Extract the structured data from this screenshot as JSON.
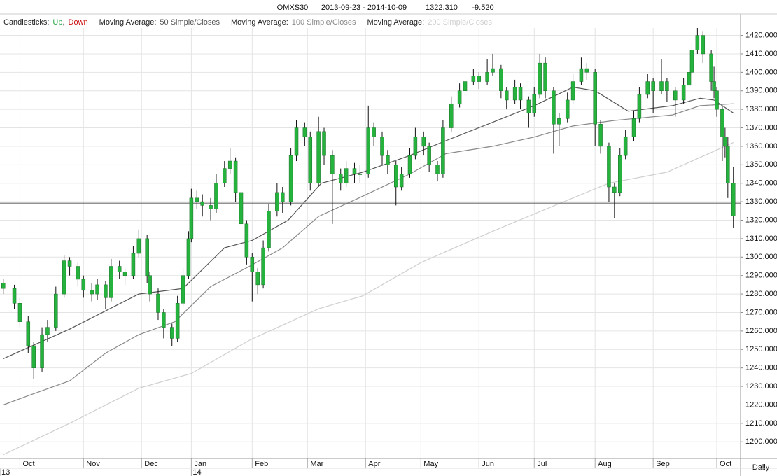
{
  "chart_data": {
    "type": "candlestick",
    "symbol": "OMXS30",
    "date_range": "2013-09-23 - 2014-10-09",
    "last": "1322.310",
    "change": "-9.520",
    "legend": {
      "candles_label": "Candlesticks:",
      "up_label": "Up",
      "separator": ",",
      "down_label": "Down",
      "up_color": "#2aa84a",
      "down_color": "#cc1111",
      "ma_label": "Moving Average:"
    },
    "period": "Daily",
    "candle_color": "#25b33d",
    "xlim": [
      -1.2,
      266.6
    ],
    "ylim": [
      1191,
      1424
    ],
    "yticks": [
      {
        "value": 1200,
        "label": "1200.000"
      },
      {
        "value": 1210,
        "label": "1210.000"
      },
      {
        "value": 1220,
        "label": "1220.000"
      },
      {
        "value": 1230,
        "label": "1230.000"
      },
      {
        "value": 1240,
        "label": "1240.000"
      },
      {
        "value": 1250,
        "label": "1250.000"
      },
      {
        "value": 1260,
        "label": "1260.000"
      },
      {
        "value": 1270,
        "label": "1270.000"
      },
      {
        "value": 1280,
        "label": "1280.000"
      },
      {
        "value": 1290,
        "label": "1290.000"
      },
      {
        "value": 1300,
        "label": "1300.000"
      },
      {
        "value": 1310,
        "label": "1310.000"
      },
      {
        "value": 1320,
        "label": "1320.000"
      },
      {
        "value": 1330,
        "label": "1330.000"
      },
      {
        "value": 1340,
        "label": "1340.000"
      },
      {
        "value": 1350,
        "label": "1350.000"
      },
      {
        "value": 1360,
        "label": "1360.000"
      },
      {
        "value": 1370,
        "label": "1370.000"
      },
      {
        "value": 1380,
        "label": "1380.000"
      },
      {
        "value": 1390,
        "label": "1390.000"
      },
      {
        "value": 1400,
        "label": "1400.000"
      },
      {
        "value": 1410,
        "label": "1410.000"
      },
      {
        "value": 1420,
        "label": "1420.000"
      }
    ],
    "xticks": [
      {
        "value": 6,
        "label": "Oct"
      },
      {
        "value": 29,
        "label": "Nov"
      },
      {
        "value": 50,
        "label": "Dec"
      },
      {
        "value": 68,
        "label": "Jan"
      },
      {
        "value": 90,
        "label": "Feb"
      },
      {
        "value": 110,
        "label": "Mar"
      },
      {
        "value": 131,
        "label": "Apr"
      },
      {
        "value": 151,
        "label": "May"
      },
      {
        "value": 172,
        "label": "Jun"
      },
      {
        "value": 192,
        "label": "Jul"
      },
      {
        "value": 214,
        "label": "Aug"
      },
      {
        "value": 235,
        "label": "Sep"
      },
      {
        "value": 258,
        "label": "Oct"
      }
    ],
    "year_ticks": [
      {
        "value": -1.2,
        "label": "13"
      },
      {
        "value": 68,
        "label": "14"
      }
    ],
    "grid": true,
    "hline": {
      "value": 1329,
      "color": "#777"
    },
    "candles": [
      {
        "x": 0,
        "open": 1286,
        "high": 1288,
        "low": 1280,
        "close": 1283
      },
      {
        "x": 4,
        "open": 1283,
        "high": 1285,
        "low": 1272,
        "close": 1275
      },
      {
        "x": 6,
        "open": 1275,
        "high": 1278,
        "low": 1262,
        "close": 1265
      },
      {
        "x": 9,
        "open": 1265,
        "high": 1268,
        "low": 1248,
        "close": 1252
      },
      {
        "x": 11,
        "open": 1252,
        "high": 1254,
        "low": 1234,
        "close": 1240
      },
      {
        "x": 14,
        "open": 1240,
        "high": 1262,
        "low": 1238,
        "close": 1258
      },
      {
        "x": 16,
        "open": 1258,
        "high": 1266,
        "low": 1254,
        "close": 1262
      },
      {
        "x": 19,
        "open": 1262,
        "high": 1284,
        "low": 1260,
        "close": 1280
      },
      {
        "x": 22,
        "open": 1280,
        "high": 1301,
        "low": 1278,
        "close": 1298
      },
      {
        "x": 24,
        "open": 1298,
        "high": 1300,
        "low": 1290,
        "close": 1295
      },
      {
        "x": 27,
        "open": 1295,
        "high": 1297,
        "low": 1284,
        "close": 1288
      },
      {
        "x": 29,
        "open": 1288,
        "high": 1290,
        "low": 1278,
        "close": 1282
      },
      {
        "x": 32,
        "open": 1282,
        "high": 1286,
        "low": 1276,
        "close": 1280
      },
      {
        "x": 34,
        "open": 1280,
        "high": 1288,
        "low": 1277,
        "close": 1285
      },
      {
        "x": 37,
        "open": 1285,
        "high": 1287,
        "low": 1272,
        "close": 1278
      },
      {
        "x": 39,
        "open": 1278,
        "high": 1299,
        "low": 1276,
        "close": 1295
      },
      {
        "x": 42,
        "open": 1295,
        "high": 1298,
        "low": 1288,
        "close": 1292
      },
      {
        "x": 44,
        "open": 1292,
        "high": 1294,
        "low": 1285,
        "close": 1290
      },
      {
        "x": 47,
        "open": 1290,
        "high": 1306,
        "low": 1288,
        "close": 1302
      },
      {
        "x": 49,
        "open": 1302,
        "high": 1315,
        "low": 1300,
        "close": 1310
      },
      {
        "x": 52,
        "open": 1310,
        "high": 1312,
        "low": 1286,
        "close": 1290
      },
      {
        "x": 53,
        "open": 1290,
        "high": 1292,
        "low": 1276,
        "close": 1280
      },
      {
        "x": 56,
        "open": 1280,
        "high": 1283,
        "low": 1266,
        "close": 1270
      },
      {
        "x": 58,
        "open": 1270,
        "high": 1272,
        "low": 1256,
        "close": 1262
      },
      {
        "x": 61,
        "open": 1262,
        "high": 1264,
        "low": 1252,
        "close": 1256
      },
      {
        "x": 63,
        "open": 1256,
        "high": 1279,
        "low": 1254,
        "close": 1275
      },
      {
        "x": 65,
        "open": 1275,
        "high": 1294,
        "low": 1273,
        "close": 1290
      },
      {
        "x": 67,
        "open": 1290,
        "high": 1314,
        "low": 1288,
        "close": 1310
      },
      {
        "x": 68,
        "open": 1310,
        "high": 1337,
        "low": 1308,
        "close": 1332
      },
      {
        "x": 70,
        "open": 1332,
        "high": 1336,
        "low": 1326,
        "close": 1330
      },
      {
        "x": 72,
        "open": 1330,
        "high": 1334,
        "low": 1322,
        "close": 1328
      },
      {
        "x": 75,
        "open": 1328,
        "high": 1332,
        "low": 1320,
        "close": 1326
      },
      {
        "x": 77,
        "open": 1326,
        "high": 1345,
        "low": 1324,
        "close": 1340
      },
      {
        "x": 80,
        "open": 1340,
        "high": 1352,
        "low": 1338,
        "close": 1348
      },
      {
        "x": 82,
        "open": 1348,
        "high": 1359,
        "low": 1345,
        "close": 1352
      },
      {
        "x": 84,
        "open": 1352,
        "high": 1354,
        "low": 1330,
        "close": 1335
      },
      {
        "x": 86,
        "open": 1335,
        "high": 1337,
        "low": 1312,
        "close": 1318
      },
      {
        "x": 88,
        "open": 1318,
        "high": 1320,
        "low": 1296,
        "close": 1300
      },
      {
        "x": 90,
        "open": 1300,
        "high": 1302,
        "low": 1276,
        "close": 1292
      },
      {
        "x": 92,
        "open": 1292,
        "high": 1294,
        "low": 1280,
        "close": 1285
      },
      {
        "x": 94,
        "open": 1285,
        "high": 1309,
        "low": 1283,
        "close": 1305
      },
      {
        "x": 96,
        "open": 1305,
        "high": 1329,
        "low": 1303,
        "close": 1325
      },
      {
        "x": 99,
        "open": 1325,
        "high": 1340,
        "low": 1322,
        "close": 1335
      },
      {
        "x": 101,
        "open": 1335,
        "high": 1338,
        "low": 1324,
        "close": 1330
      },
      {
        "x": 104,
        "open": 1330,
        "high": 1359,
        "low": 1328,
        "close": 1355
      },
      {
        "x": 106,
        "open": 1355,
        "high": 1374,
        "low": 1352,
        "close": 1370
      },
      {
        "x": 109,
        "open": 1370,
        "high": 1373,
        "low": 1360,
        "close": 1365
      },
      {
        "x": 111,
        "open": 1365,
        "high": 1368,
        "low": 1336,
        "close": 1340
      },
      {
        "x": 114,
        "open": 1340,
        "high": 1376,
        "low": 1338,
        "close": 1368
      },
      {
        "x": 116,
        "open": 1368,
        "high": 1370,
        "low": 1350,
        "close": 1355
      },
      {
        "x": 119,
        "open": 1355,
        "high": 1358,
        "low": 1318,
        "close": 1345
      },
      {
        "x": 122,
        "open": 1345,
        "high": 1348,
        "low": 1336,
        "close": 1340
      },
      {
        "x": 124,
        "open": 1340,
        "high": 1352,
        "low": 1338,
        "close": 1348
      },
      {
        "x": 127,
        "open": 1348,
        "high": 1351,
        "low": 1340,
        "close": 1345
      },
      {
        "x": 129,
        "open": 1345,
        "high": 1350,
        "low": 1340,
        "close": 1345
      },
      {
        "x": 132,
        "open": 1345,
        "high": 1382,
        "low": 1343,
        "close": 1370
      },
      {
        "x": 134,
        "open": 1370,
        "high": 1373,
        "low": 1360,
        "close": 1365
      },
      {
        "x": 137,
        "open": 1365,
        "high": 1368,
        "low": 1350,
        "close": 1355
      },
      {
        "x": 139,
        "open": 1355,
        "high": 1358,
        "low": 1345,
        "close": 1350
      },
      {
        "x": 142,
        "open": 1350,
        "high": 1352,
        "low": 1328,
        "close": 1338
      },
      {
        "x": 144,
        "open": 1338,
        "high": 1349,
        "low": 1336,
        "close": 1345
      },
      {
        "x": 147,
        "open": 1345,
        "high": 1359,
        "low": 1343,
        "close": 1355
      },
      {
        "x": 149,
        "open": 1355,
        "high": 1370,
        "low": 1353,
        "close": 1365
      },
      {
        "x": 152,
        "open": 1365,
        "high": 1368,
        "low": 1355,
        "close": 1360
      },
      {
        "x": 154,
        "open": 1360,
        "high": 1362,
        "low": 1346,
        "close": 1350
      },
      {
        "x": 157,
        "open": 1350,
        "high": 1352,
        "low": 1341,
        "close": 1345
      },
      {
        "x": 159,
        "open": 1345,
        "high": 1374,
        "low": 1343,
        "close": 1370
      },
      {
        "x": 162,
        "open": 1370,
        "high": 1387,
        "low": 1368,
        "close": 1383
      },
      {
        "x": 165,
        "open": 1383,
        "high": 1394,
        "low": 1381,
        "close": 1390
      },
      {
        "x": 167,
        "open": 1390,
        "high": 1399,
        "low": 1388,
        "close": 1395
      },
      {
        "x": 170,
        "open": 1395,
        "high": 1402,
        "low": 1393,
        "close": 1398
      },
      {
        "x": 172,
        "open": 1398,
        "high": 1400,
        "low": 1391,
        "close": 1395
      },
      {
        "x": 175,
        "open": 1395,
        "high": 1407,
        "low": 1393,
        "close": 1400
      },
      {
        "x": 177,
        "open": 1400,
        "high": 1410,
        "low": 1398,
        "close": 1402
      },
      {
        "x": 180,
        "open": 1402,
        "high": 1404,
        "low": 1386,
        "close": 1390
      },
      {
        "x": 182,
        "open": 1390,
        "high": 1392,
        "low": 1380,
        "close": 1385
      },
      {
        "x": 185,
        "open": 1385,
        "high": 1396,
        "low": 1383,
        "close": 1392
      },
      {
        "x": 187,
        "open": 1392,
        "high": 1394,
        "low": 1380,
        "close": 1385
      },
      {
        "x": 190,
        "open": 1385,
        "high": 1387,
        "low": 1370,
        "close": 1378
      },
      {
        "x": 192,
        "open": 1378,
        "high": 1392,
        "low": 1376,
        "close": 1388
      },
      {
        "x": 194,
        "open": 1388,
        "high": 1410,
        "low": 1386,
        "close": 1405
      },
      {
        "x": 196,
        "open": 1405,
        "high": 1408,
        "low": 1386,
        "close": 1390
      },
      {
        "x": 199,
        "open": 1390,
        "high": 1392,
        "low": 1356,
        "close": 1372
      },
      {
        "x": 201,
        "open": 1372,
        "high": 1378,
        "low": 1360,
        "close": 1375
      },
      {
        "x": 204,
        "open": 1375,
        "high": 1389,
        "low": 1373,
        "close": 1385
      },
      {
        "x": 206,
        "open": 1385,
        "high": 1399,
        "low": 1383,
        "close": 1395
      },
      {
        "x": 209,
        "open": 1395,
        "high": 1408,
        "low": 1393,
        "close": 1402
      },
      {
        "x": 211,
        "open": 1402,
        "high": 1405,
        "low": 1396,
        "close": 1400
      },
      {
        "x": 214,
        "open": 1400,
        "high": 1402,
        "low": 1360,
        "close": 1372
      },
      {
        "x": 216,
        "open": 1372,
        "high": 1374,
        "low": 1356,
        "close": 1360
      },
      {
        "x": 219,
        "open": 1360,
        "high": 1362,
        "low": 1330,
        "close": 1338
      },
      {
        "x": 221,
        "open": 1338,
        "high": 1340,
        "low": 1321,
        "close": 1335
      },
      {
        "x": 223,
        "open": 1335,
        "high": 1359,
        "low": 1333,
        "close": 1355
      },
      {
        "x": 225,
        "open": 1355,
        "high": 1369,
        "low": 1353,
        "close": 1365
      },
      {
        "x": 228,
        "open": 1365,
        "high": 1379,
        "low": 1363,
        "close": 1375
      },
      {
        "x": 230,
        "open": 1375,
        "high": 1392,
        "low": 1373,
        "close": 1388
      },
      {
        "x": 233,
        "open": 1388,
        "high": 1399,
        "low": 1386,
        "close": 1395
      },
      {
        "x": 235,
        "open": 1395,
        "high": 1397,
        "low": 1378,
        "close": 1390
      },
      {
        "x": 238,
        "open": 1390,
        "high": 1407,
        "low": 1388,
        "close": 1395
      },
      {
        "x": 240,
        "open": 1395,
        "high": 1397,
        "low": 1384,
        "close": 1390
      },
      {
        "x": 243,
        "open": 1390,
        "high": 1392,
        "low": 1376,
        "close": 1385
      },
      {
        "x": 246,
        "open": 1385,
        "high": 1397,
        "low": 1383,
        "close": 1393
      },
      {
        "x": 248,
        "open": 1393,
        "high": 1404,
        "low": 1391,
        "close": 1400
      },
      {
        "x": 249,
        "open": 1400,
        "high": 1416,
        "low": 1398,
        "close": 1412
      },
      {
        "x": 251,
        "open": 1412,
        "high": 1424,
        "low": 1410,
        "close": 1420
      },
      {
        "x": 253,
        "open": 1420,
        "high": 1422,
        "low": 1405,
        "close": 1410
      },
      {
        "x": 256,
        "open": 1410,
        "high": 1412,
        "low": 1390,
        "close": 1395
      },
      {
        "x": 257,
        "open": 1395,
        "high": 1403,
        "low": 1386,
        "close": 1390
      },
      {
        "x": 258,
        "open": 1390,
        "high": 1392,
        "low": 1376,
        "close": 1380
      },
      {
        "x": 260,
        "open": 1380,
        "high": 1382,
        "low": 1352,
        "close": 1365
      },
      {
        "x": 261,
        "open": 1365,
        "high": 1370,
        "low": 1354,
        "close": 1360
      },
      {
        "x": 262,
        "open": 1360,
        "high": 1365,
        "low": 1332,
        "close": 1340
      },
      {
        "x": 264,
        "open": 1340,
        "high": 1349,
        "low": 1316,
        "close": 1322.31
      }
    ],
    "series": [
      {
        "name": "50 Simple/Closes",
        "color": "#555555",
        "x": [
          0,
          24,
          49,
          65,
          80,
          90,
          103,
          115,
          130,
          147,
          160,
          177,
          192,
          206,
          214,
          226,
          242,
          252,
          257,
          264
        ],
        "values": [
          1245,
          1261,
          1280,
          1283,
          1305,
          1309,
          1320,
          1340,
          1346,
          1355,
          1363,
          1373,
          1382,
          1392,
          1390,
          1379,
          1382,
          1386,
          1385,
          1378
        ]
      },
      {
        "name": "100 Simple/Closes",
        "color": "#8a8a8a",
        "x": [
          0,
          9,
          24,
          37,
          49,
          62,
          75,
          89,
          101,
          114,
          130,
          147,
          160,
          177,
          192,
          206,
          221,
          242,
          252,
          264
        ],
        "values": [
          1220,
          1225,
          1233,
          1248,
          1258,
          1265,
          1284,
          1295,
          1305,
          1322,
          1333,
          1345,
          1356,
          1360,
          1365,
          1371,
          1374,
          1377,
          1382,
          1383
        ]
      },
      {
        "name": "200 Simple/Closes",
        "color": "#cfcfcf",
        "x": [
          0,
          24,
          49,
          68,
          89,
          114,
          130,
          151,
          177,
          201,
          219,
          240,
          264
        ],
        "values": [
          1193,
          1210,
          1229,
          1237,
          1255,
          1272,
          1279,
          1297,
          1314,
          1329,
          1340,
          1346,
          1362
        ]
      }
    ]
  }
}
